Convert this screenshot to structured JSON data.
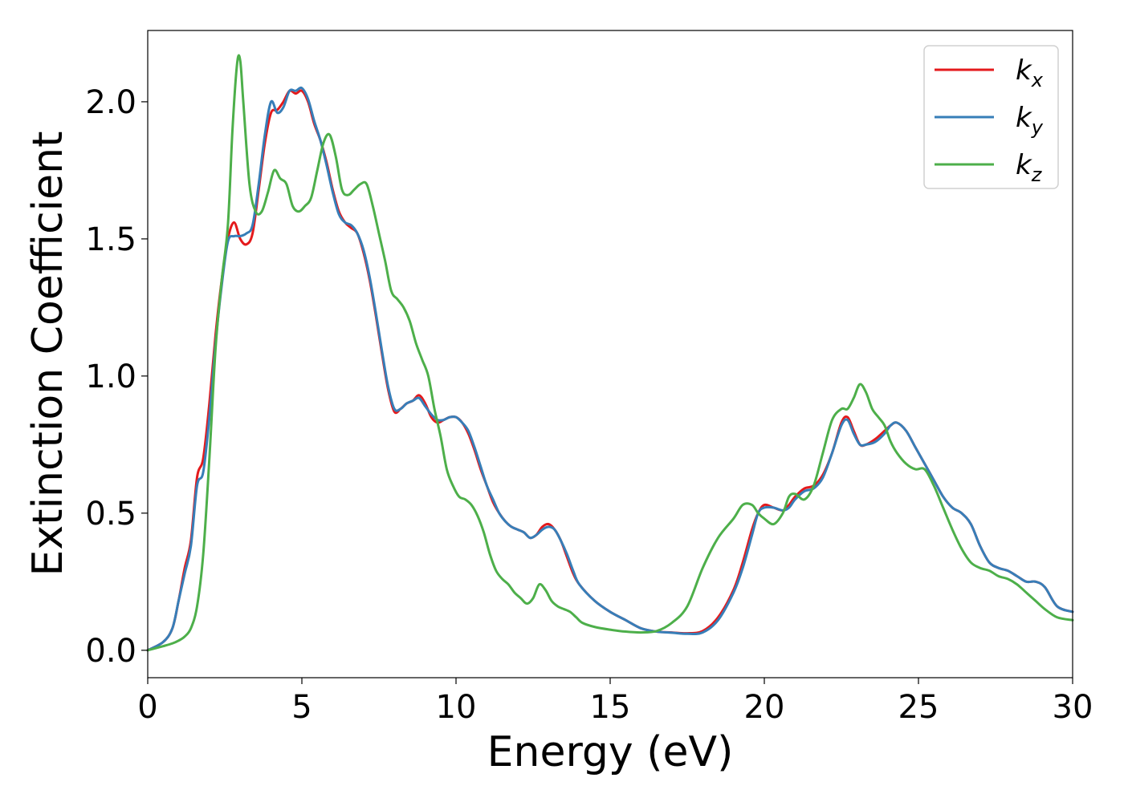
{
  "chart_data": {
    "type": "line",
    "xlabel": "Energy (eV)",
    "ylabel": "Extinction Coefficient",
    "xlim": [
      0,
      30
    ],
    "ylim": [
      -0.1,
      2.26
    ],
    "xticks": [
      0,
      5,
      10,
      15,
      20,
      25,
      30
    ],
    "yticks": [
      0.0,
      0.5,
      1.0,
      1.5,
      2.0
    ],
    "xtick_labels": [
      "0",
      "5",
      "10",
      "15",
      "20",
      "25",
      "30"
    ],
    "ytick_labels": [
      "0.0",
      "0.5",
      "1.0",
      "1.5",
      "2.0"
    ],
    "grid": false,
    "legend_position": "top-right",
    "series": [
      {
        "name": "k",
        "subscript": "x",
        "color": "#e41a1c",
        "x": [
          0,
          0.5,
          0.8,
          1.0,
          1.2,
          1.4,
          1.6,
          1.8,
          2.0,
          2.2,
          2.4,
          2.6,
          2.8,
          3.0,
          3.2,
          3.4,
          3.6,
          3.8,
          4.0,
          4.2,
          4.4,
          4.6,
          4.8,
          5.0,
          5.2,
          5.4,
          5.6,
          5.8,
          6.0,
          6.2,
          6.4,
          6.6,
          6.8,
          7.0,
          7.2,
          7.4,
          7.6,
          7.8,
          8.0,
          8.2,
          8.4,
          8.6,
          8.8,
          9.0,
          9.2,
          9.4,
          9.6,
          9.8,
          10.0,
          10.2,
          10.4,
          10.6,
          10.8,
          11.0,
          11.2,
          11.4,
          11.6,
          11.8,
          12.0,
          12.2,
          12.4,
          12.6,
          12.8,
          13.0,
          13.2,
          13.4,
          13.6,
          13.8,
          14.0,
          14.5,
          15.0,
          15.5,
          16.0,
          16.5,
          17.0,
          17.5,
          18.0,
          18.5,
          19.0,
          19.3,
          19.6,
          19.8,
          20.0,
          20.3,
          20.6,
          20.8,
          21.0,
          21.3,
          21.6,
          21.9,
          22.2,
          22.5,
          22.7,
          22.9,
          23.1,
          23.3,
          23.6,
          23.9,
          24.1,
          24.3,
          24.6,
          24.9,
          25.2,
          25.5,
          25.8,
          26.1,
          26.4,
          26.7,
          27.0,
          27.3,
          27.6,
          27.9,
          28.2,
          28.5,
          28.8,
          29.1,
          29.5,
          30.0
        ],
        "y": [
          0.0,
          0.03,
          0.08,
          0.18,
          0.3,
          0.4,
          0.63,
          0.7,
          0.9,
          1.15,
          1.35,
          1.5,
          1.56,
          1.5,
          1.48,
          1.52,
          1.68,
          1.85,
          1.96,
          1.97,
          2.0,
          2.04,
          2.03,
          2.04,
          2.0,
          1.92,
          1.86,
          1.78,
          1.68,
          1.6,
          1.56,
          1.54,
          1.52,
          1.45,
          1.35,
          1.22,
          1.08,
          0.95,
          0.87,
          0.88,
          0.9,
          0.91,
          0.93,
          0.9,
          0.85,
          0.83,
          0.84,
          0.85,
          0.85,
          0.83,
          0.79,
          0.73,
          0.66,
          0.6,
          0.54,
          0.5,
          0.47,
          0.45,
          0.44,
          0.43,
          0.41,
          0.42,
          0.45,
          0.46,
          0.44,
          0.4,
          0.34,
          0.28,
          0.24,
          0.18,
          0.14,
          0.11,
          0.08,
          0.068,
          0.065,
          0.062,
          0.07,
          0.12,
          0.22,
          0.32,
          0.44,
          0.5,
          0.53,
          0.52,
          0.51,
          0.53,
          0.56,
          0.59,
          0.6,
          0.64,
          0.72,
          0.83,
          0.85,
          0.8,
          0.75,
          0.75,
          0.77,
          0.8,
          0.82,
          0.83,
          0.8,
          0.74,
          0.68,
          0.62,
          0.56,
          0.52,
          0.5,
          0.46,
          0.38,
          0.32,
          0.3,
          0.29,
          0.27,
          0.25,
          0.25,
          0.23,
          0.16,
          0.14
        ]
      },
      {
        "name": "k",
        "subscript": "y",
        "color": "#377eb8",
        "x": [
          0,
          0.5,
          0.8,
          1.0,
          1.2,
          1.4,
          1.6,
          1.8,
          2.0,
          2.2,
          2.4,
          2.6,
          2.8,
          3.0,
          3.2,
          3.4,
          3.6,
          3.8,
          4.0,
          4.2,
          4.4,
          4.6,
          4.8,
          5.0,
          5.2,
          5.4,
          5.6,
          5.8,
          6.0,
          6.2,
          6.4,
          6.6,
          6.8,
          7.0,
          7.2,
          7.4,
          7.6,
          7.8,
          8.0,
          8.2,
          8.4,
          8.6,
          8.8,
          9.0,
          9.2,
          9.4,
          9.6,
          9.8,
          10.0,
          10.2,
          10.4,
          10.6,
          10.8,
          11.0,
          11.2,
          11.4,
          11.6,
          11.8,
          12.0,
          12.2,
          12.4,
          12.6,
          12.8,
          13.0,
          13.2,
          13.4,
          13.6,
          13.8,
          14.0,
          14.5,
          15.0,
          15.5,
          16.0,
          16.5,
          17.0,
          17.5,
          18.0,
          18.5,
          19.0,
          19.3,
          19.6,
          19.8,
          20.0,
          20.3,
          20.6,
          20.8,
          21.0,
          21.3,
          21.6,
          21.9,
          22.2,
          22.5,
          22.7,
          22.9,
          23.1,
          23.3,
          23.6,
          23.9,
          24.1,
          24.3,
          24.6,
          24.9,
          25.2,
          25.5,
          25.8,
          26.1,
          26.4,
          26.7,
          27.0,
          27.3,
          27.6,
          27.9,
          28.2,
          28.5,
          28.8,
          29.1,
          29.5,
          30.0
        ],
        "y": [
          0.0,
          0.03,
          0.08,
          0.18,
          0.28,
          0.38,
          0.6,
          0.65,
          0.85,
          1.12,
          1.33,
          1.49,
          1.51,
          1.51,
          1.52,
          1.55,
          1.7,
          1.88,
          2.0,
          1.96,
          1.98,
          2.04,
          2.04,
          2.05,
          2.01,
          1.93,
          1.86,
          1.77,
          1.67,
          1.59,
          1.56,
          1.55,
          1.52,
          1.46,
          1.36,
          1.23,
          1.09,
          0.96,
          0.88,
          0.88,
          0.9,
          0.91,
          0.92,
          0.89,
          0.86,
          0.84,
          0.84,
          0.85,
          0.85,
          0.83,
          0.8,
          0.74,
          0.67,
          0.6,
          0.55,
          0.5,
          0.47,
          0.45,
          0.44,
          0.43,
          0.41,
          0.42,
          0.44,
          0.45,
          0.44,
          0.4,
          0.35,
          0.29,
          0.24,
          0.18,
          0.14,
          0.11,
          0.08,
          0.068,
          0.064,
          0.06,
          0.065,
          0.11,
          0.21,
          0.3,
          0.42,
          0.5,
          0.52,
          0.52,
          0.51,
          0.52,
          0.55,
          0.58,
          0.59,
          0.63,
          0.72,
          0.82,
          0.84,
          0.79,
          0.75,
          0.75,
          0.76,
          0.79,
          0.82,
          0.83,
          0.8,
          0.74,
          0.68,
          0.62,
          0.56,
          0.52,
          0.5,
          0.46,
          0.38,
          0.32,
          0.3,
          0.29,
          0.27,
          0.25,
          0.25,
          0.23,
          0.16,
          0.14
        ]
      },
      {
        "name": "k",
        "subscript": "z",
        "color": "#4daf4a",
        "x": [
          0,
          0.5,
          0.8,
          1.0,
          1.2,
          1.4,
          1.6,
          1.8,
          2.0,
          2.2,
          2.4,
          2.6,
          2.75,
          2.9,
          3.0,
          3.1,
          3.3,
          3.5,
          3.7,
          3.9,
          4.1,
          4.3,
          4.5,
          4.7,
          4.9,
          5.1,
          5.3,
          5.5,
          5.7,
          5.9,
          6.1,
          6.3,
          6.5,
          6.7,
          6.9,
          7.1,
          7.3,
          7.5,
          7.7,
          7.9,
          8.1,
          8.3,
          8.5,
          8.7,
          8.9,
          9.1,
          9.3,
          9.5,
          9.7,
          9.9,
          10.1,
          10.3,
          10.5,
          10.7,
          10.9,
          11.1,
          11.3,
          11.5,
          11.7,
          11.9,
          12.1,
          12.3,
          12.5,
          12.7,
          12.9,
          13.1,
          13.3,
          13.5,
          13.7,
          13.9,
          14.1,
          14.5,
          15.0,
          15.5,
          16.0,
          16.5,
          17.0,
          17.5,
          18.0,
          18.5,
          19.0,
          19.3,
          19.6,
          19.8,
          20.0,
          20.3,
          20.6,
          20.8,
          21.0,
          21.3,
          21.6,
          21.9,
          22.2,
          22.5,
          22.7,
          22.9,
          23.1,
          23.3,
          23.5,
          23.7,
          23.9,
          24.1,
          24.3,
          24.6,
          24.9,
          25.2,
          25.5,
          25.8,
          26.1,
          26.4,
          26.7,
          27.0,
          27.3,
          27.6,
          27.9,
          28.2,
          28.5,
          28.8,
          29.1,
          29.5,
          30.0
        ],
        "y": [
          0.0,
          0.015,
          0.025,
          0.035,
          0.05,
          0.08,
          0.16,
          0.35,
          0.7,
          1.1,
          1.35,
          1.55,
          1.9,
          2.14,
          2.15,
          2.0,
          1.7,
          1.6,
          1.6,
          1.67,
          1.75,
          1.72,
          1.7,
          1.62,
          1.6,
          1.62,
          1.65,
          1.75,
          1.85,
          1.88,
          1.8,
          1.68,
          1.66,
          1.68,
          1.7,
          1.7,
          1.62,
          1.52,
          1.42,
          1.31,
          1.28,
          1.25,
          1.2,
          1.12,
          1.06,
          1.0,
          0.88,
          0.78,
          0.66,
          0.6,
          0.56,
          0.55,
          0.53,
          0.49,
          0.43,
          0.35,
          0.29,
          0.26,
          0.24,
          0.21,
          0.19,
          0.17,
          0.19,
          0.24,
          0.22,
          0.18,
          0.16,
          0.15,
          0.14,
          0.12,
          0.1,
          0.085,
          0.075,
          0.068,
          0.065,
          0.07,
          0.1,
          0.16,
          0.3,
          0.41,
          0.48,
          0.53,
          0.53,
          0.5,
          0.48,
          0.46,
          0.5,
          0.56,
          0.57,
          0.55,
          0.6,
          0.72,
          0.84,
          0.88,
          0.88,
          0.92,
          0.97,
          0.94,
          0.88,
          0.85,
          0.82,
          0.76,
          0.72,
          0.68,
          0.66,
          0.66,
          0.6,
          0.52,
          0.44,
          0.37,
          0.32,
          0.3,
          0.29,
          0.27,
          0.26,
          0.24,
          0.21,
          0.18,
          0.15,
          0.12,
          0.11
        ]
      }
    ]
  }
}
